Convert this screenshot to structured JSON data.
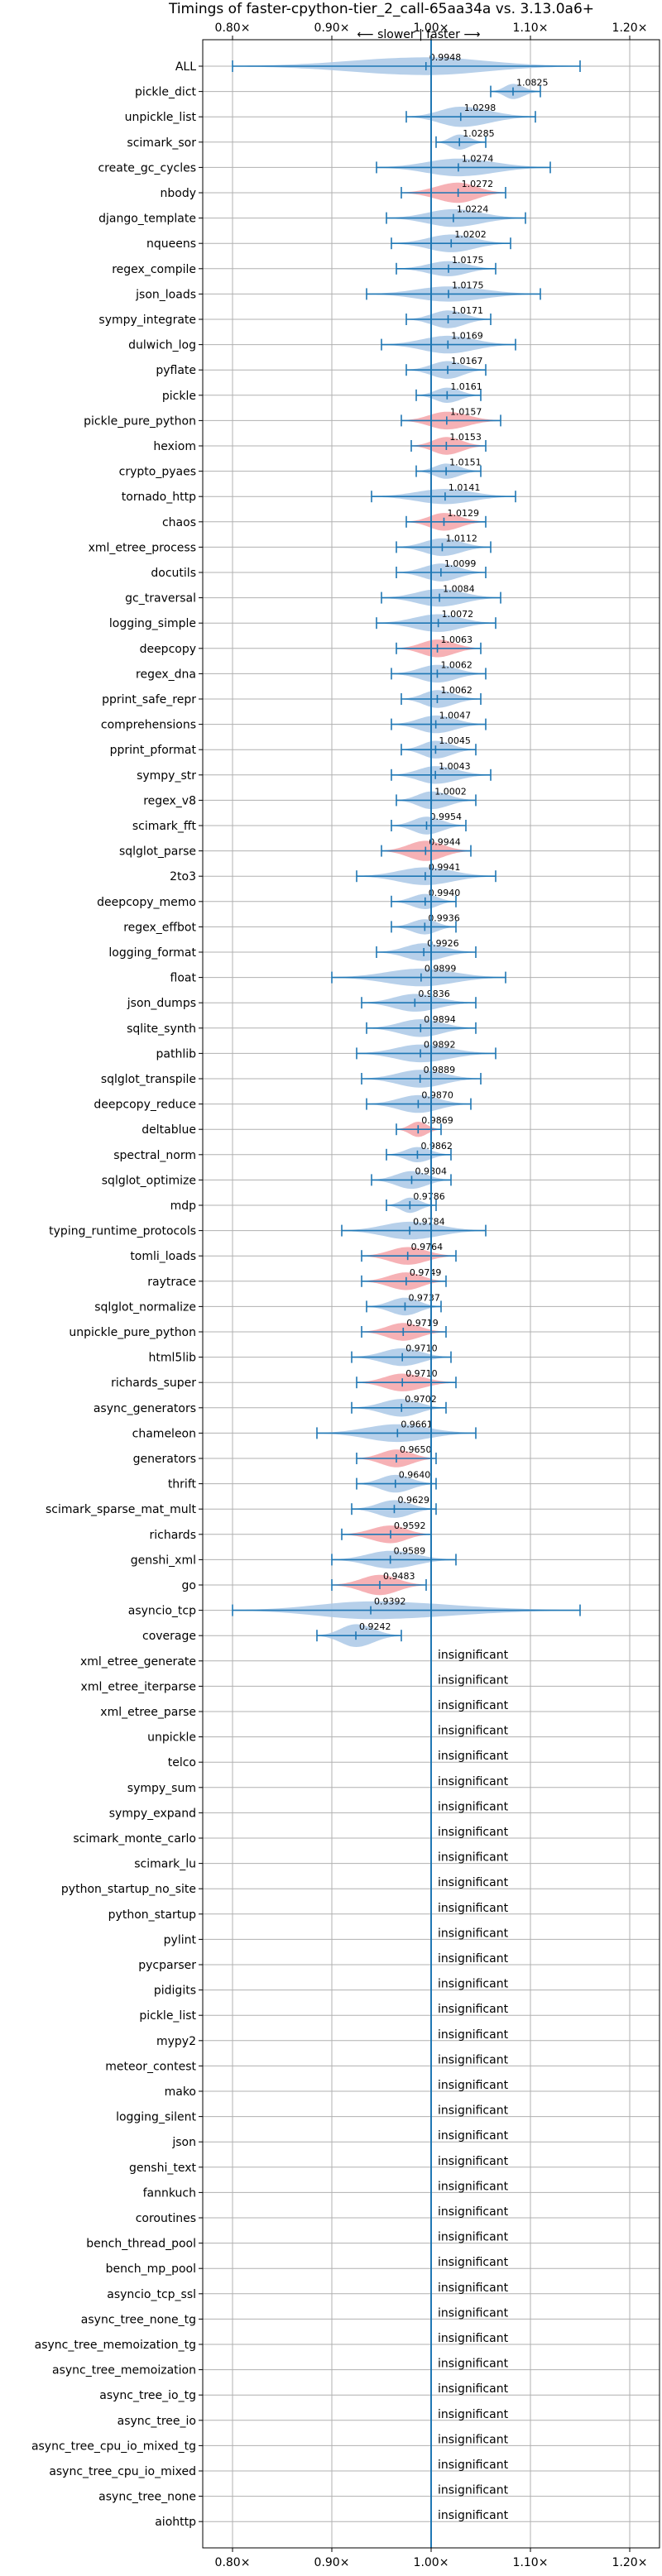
{
  "chart_data": {
    "type": "violin",
    "title": "Timings of faster-cpython-tier_2_call-65aa34a vs. 3.13.0a6+",
    "direction_label": "⟵ slower | faster ⟶",
    "xlim": [
      0.77,
      1.23
    ],
    "x_ticks": [
      {
        "value": 0.8,
        "label": "0.80×"
      },
      {
        "value": 0.9,
        "label": "0.90×"
      },
      {
        "value": 1.0,
        "label": "1.00×"
      },
      {
        "value": 1.1,
        "label": "1.10×"
      },
      {
        "value": 1.2,
        "label": "1.20×"
      }
    ],
    "reference_line": 1.0,
    "grid": true,
    "colors": {
      "faster": "#aac8e6",
      "slower": "#f4a3a8",
      "whisker": "#1f77b4",
      "grid": "#b0b0b0"
    },
    "insignificant_text": "insignificant",
    "benchmarks": [
      {
        "name": "ALL",
        "label": "0.9948",
        "mean": 0.9948,
        "min": 0.8,
        "max": 1.15,
        "width": 0.7,
        "slower": false
      },
      {
        "name": "pickle_dict",
        "label": "1.0825",
        "mean": 1.0825,
        "min": 1.06,
        "max": 1.11,
        "width": 0.6,
        "slower": false
      },
      {
        "name": "unpickle_list",
        "label": "1.0298",
        "mean": 1.0298,
        "min": 0.975,
        "max": 1.105,
        "width": 0.8,
        "slower": false
      },
      {
        "name": "scimark_sor",
        "label": "1.0285",
        "mean": 1.0285,
        "min": 1.005,
        "max": 1.055,
        "width": 0.6,
        "slower": false
      },
      {
        "name": "create_gc_cycles",
        "label": "1.0274",
        "mean": 1.0274,
        "min": 0.945,
        "max": 1.12,
        "width": 0.7,
        "slower": false
      },
      {
        "name": "nbody",
        "label": "1.0272",
        "mean": 1.0272,
        "min": 0.97,
        "max": 1.075,
        "width": 0.8,
        "slower": true
      },
      {
        "name": "django_template",
        "label": "1.0224",
        "mean": 1.0224,
        "min": 0.955,
        "max": 1.095,
        "width": 0.7,
        "slower": false
      },
      {
        "name": "nqueens",
        "label": "1.0202",
        "mean": 1.0202,
        "min": 0.96,
        "max": 1.08,
        "width": 0.7,
        "slower": false
      },
      {
        "name": "regex_compile",
        "label": "1.0175",
        "mean": 1.0175,
        "min": 0.965,
        "max": 1.065,
        "width": 0.6,
        "slower": false
      },
      {
        "name": "json_loads",
        "label": "1.0175",
        "mean": 1.0175,
        "min": 0.935,
        "max": 1.11,
        "width": 0.6,
        "slower": false
      },
      {
        "name": "sympy_integrate",
        "label": "1.0171",
        "mean": 1.0171,
        "min": 0.975,
        "max": 1.06,
        "width": 0.7,
        "slower": false
      },
      {
        "name": "dulwich_log",
        "label": "1.0169",
        "mean": 1.0169,
        "min": 0.95,
        "max": 1.085,
        "width": 0.7,
        "slower": false
      },
      {
        "name": "pyflate",
        "label": "1.0167",
        "mean": 1.0167,
        "min": 0.975,
        "max": 1.055,
        "width": 0.7,
        "slower": false
      },
      {
        "name": "pickle",
        "label": "1.0161",
        "mean": 1.0161,
        "min": 0.985,
        "max": 1.05,
        "width": 0.6,
        "slower": false
      },
      {
        "name": "pickle_pure_python",
        "label": "1.0157",
        "mean": 1.0157,
        "min": 0.97,
        "max": 1.07,
        "width": 0.7,
        "slower": true
      },
      {
        "name": "hexiom",
        "label": "1.0153",
        "mean": 1.0153,
        "min": 0.98,
        "max": 1.055,
        "width": 0.7,
        "slower": true
      },
      {
        "name": "crypto_pyaes",
        "label": "1.0151",
        "mean": 1.0151,
        "min": 0.985,
        "max": 1.05,
        "width": 0.6,
        "slower": false
      },
      {
        "name": "tornado_http",
        "label": "1.0141",
        "mean": 1.0141,
        "min": 0.94,
        "max": 1.085,
        "width": 0.6,
        "slower": false
      },
      {
        "name": "chaos",
        "label": "1.0129",
        "mean": 1.0129,
        "min": 0.975,
        "max": 1.055,
        "width": 0.7,
        "slower": true
      },
      {
        "name": "xml_etree_process",
        "label": "1.0112",
        "mean": 1.0112,
        "min": 0.965,
        "max": 1.06,
        "width": 0.7,
        "slower": false
      },
      {
        "name": "docutils",
        "label": "1.0099",
        "mean": 1.0099,
        "min": 0.965,
        "max": 1.055,
        "width": 0.7,
        "slower": false
      },
      {
        "name": "gc_traversal",
        "label": "1.0084",
        "mean": 1.0084,
        "min": 0.95,
        "max": 1.07,
        "width": 0.7,
        "slower": false
      },
      {
        "name": "logging_simple",
        "label": "1.0072",
        "mean": 1.0072,
        "min": 0.945,
        "max": 1.065,
        "width": 0.7,
        "slower": false
      },
      {
        "name": "deepcopy",
        "label": "1.0063",
        "mean": 1.0063,
        "min": 0.965,
        "max": 1.05,
        "width": 0.7,
        "slower": true
      },
      {
        "name": "regex_dna",
        "label": "1.0062",
        "mean": 1.0062,
        "min": 0.96,
        "max": 1.055,
        "width": 0.7,
        "slower": false
      },
      {
        "name": "pprint_safe_repr",
        "label": "1.0062",
        "mean": 1.0062,
        "min": 0.97,
        "max": 1.05,
        "width": 0.7,
        "slower": false
      },
      {
        "name": "comprehensions",
        "label": "1.0047",
        "mean": 1.0047,
        "min": 0.96,
        "max": 1.055,
        "width": 0.7,
        "slower": false
      },
      {
        "name": "pprint_pformat",
        "label": "1.0045",
        "mean": 1.0045,
        "min": 0.97,
        "max": 1.045,
        "width": 0.7,
        "slower": false
      },
      {
        "name": "sympy_str",
        "label": "1.0043",
        "mean": 1.0043,
        "min": 0.96,
        "max": 1.06,
        "width": 0.7,
        "slower": false
      },
      {
        "name": "regex_v8",
        "label": "1.0002",
        "mean": 1.0002,
        "min": 0.965,
        "max": 1.045,
        "width": 0.7,
        "slower": false
      },
      {
        "name": "scimark_fft",
        "label": "0.9954",
        "mean": 0.9954,
        "min": 0.96,
        "max": 1.035,
        "width": 0.7,
        "slower": false
      },
      {
        "name": "sqlglot_parse",
        "label": "0.9944",
        "mean": 0.9944,
        "min": 0.95,
        "max": 1.04,
        "width": 0.8,
        "slower": true
      },
      {
        "name": "2to3",
        "label": "0.9941",
        "mean": 0.9941,
        "min": 0.925,
        "max": 1.065,
        "width": 0.7,
        "slower": false
      },
      {
        "name": "deepcopy_memo",
        "label": "0.9940",
        "mean": 0.994,
        "min": 0.96,
        "max": 1.025,
        "width": 0.6,
        "slower": false
      },
      {
        "name": "regex_effbot",
        "label": "0.9936",
        "mean": 0.9936,
        "min": 0.96,
        "max": 1.025,
        "width": 0.6,
        "slower": false
      },
      {
        "name": "logging_format",
        "label": "0.9926",
        "mean": 0.9926,
        "min": 0.945,
        "max": 1.045,
        "width": 0.7,
        "slower": false
      },
      {
        "name": "float",
        "label": "0.9899",
        "mean": 0.9899,
        "min": 0.9,
        "max": 1.075,
        "width": 0.7,
        "slower": false
      },
      {
        "name": "json_dumps",
        "label": "0.9836",
        "mean": 0.9836,
        "min": 0.93,
        "max": 1.045,
        "width": 0.7,
        "slower": false
      },
      {
        "name": "sqlite_synth",
        "label": "0.9894",
        "mean": 0.9894,
        "min": 0.935,
        "max": 1.045,
        "width": 0.7,
        "slower": false
      },
      {
        "name": "pathlib",
        "label": "0.9892",
        "mean": 0.9892,
        "min": 0.925,
        "max": 1.065,
        "width": 0.7,
        "slower": false
      },
      {
        "name": "sqlglot_transpile",
        "label": "0.9889",
        "mean": 0.9889,
        "min": 0.93,
        "max": 1.05,
        "width": 0.7,
        "slower": false
      },
      {
        "name": "deepcopy_reduce",
        "label": "0.9870",
        "mean": 0.987,
        "min": 0.935,
        "max": 1.04,
        "width": 0.7,
        "slower": false
      },
      {
        "name": "deltablue",
        "label": "0.9869",
        "mean": 0.9869,
        "min": 0.965,
        "max": 1.01,
        "width": 0.6,
        "slower": true
      },
      {
        "name": "spectral_norm",
        "label": "0.9862",
        "mean": 0.9862,
        "min": 0.955,
        "max": 1.02,
        "width": 0.6,
        "slower": false
      },
      {
        "name": "sqlglot_optimize",
        "label": "0.9804",
        "mean": 0.9804,
        "min": 0.94,
        "max": 1.02,
        "width": 0.7,
        "slower": false
      },
      {
        "name": "mdp",
        "label": "0.9786",
        "mean": 0.9786,
        "min": 0.955,
        "max": 1.005,
        "width": 0.6,
        "slower": false
      },
      {
        "name": "typing_runtime_protocols",
        "label": "0.9784",
        "mean": 0.9784,
        "min": 0.91,
        "max": 1.055,
        "width": 0.7,
        "slower": false
      },
      {
        "name": "tomli_loads",
        "label": "0.9764",
        "mean": 0.9764,
        "min": 0.93,
        "max": 1.025,
        "width": 0.7,
        "slower": true
      },
      {
        "name": "raytrace",
        "label": "0.9749",
        "mean": 0.9749,
        "min": 0.93,
        "max": 1.015,
        "width": 0.7,
        "slower": true
      },
      {
        "name": "sqlglot_normalize",
        "label": "0.9737",
        "mean": 0.9737,
        "min": 0.935,
        "max": 1.01,
        "width": 0.7,
        "slower": false
      },
      {
        "name": "unpickle_pure_python",
        "label": "0.9719",
        "mean": 0.9719,
        "min": 0.93,
        "max": 1.015,
        "width": 0.7,
        "slower": true
      },
      {
        "name": "html5lib",
        "label": "0.9710",
        "mean": 0.971,
        "min": 0.92,
        "max": 1.02,
        "width": 0.7,
        "slower": false
      },
      {
        "name": "richards_super",
        "label": "0.9710",
        "mean": 0.971,
        "min": 0.925,
        "max": 1.025,
        "width": 0.7,
        "slower": true
      },
      {
        "name": "async_generators",
        "label": "0.9702",
        "mean": 0.9702,
        "min": 0.92,
        "max": 1.015,
        "width": 0.7,
        "slower": false
      },
      {
        "name": "chameleon",
        "label": "0.9661",
        "mean": 0.9661,
        "min": 0.885,
        "max": 1.045,
        "width": 0.7,
        "slower": false
      },
      {
        "name": "generators",
        "label": "0.9650",
        "mean": 0.965,
        "min": 0.925,
        "max": 1.005,
        "width": 0.7,
        "slower": true
      },
      {
        "name": "thrift",
        "label": "0.9640",
        "mean": 0.964,
        "min": 0.925,
        "max": 1.005,
        "width": 0.7,
        "slower": false
      },
      {
        "name": "scimark_sparse_mat_mult",
        "label": "0.9629",
        "mean": 0.9629,
        "min": 0.92,
        "max": 1.005,
        "width": 0.7,
        "slower": false
      },
      {
        "name": "richards",
        "label": "0.9592",
        "mean": 0.9592,
        "min": 0.91,
        "max": 1.0,
        "width": 0.7,
        "slower": true
      },
      {
        "name": "genshi_xml",
        "label": "0.9589",
        "mean": 0.9589,
        "min": 0.9,
        "max": 1.025,
        "width": 0.7,
        "slower": false
      },
      {
        "name": "go",
        "label": "0.9483",
        "mean": 0.9483,
        "min": 0.9,
        "max": 0.995,
        "width": 0.8,
        "slower": true
      },
      {
        "name": "asyncio_tcp",
        "label": "0.9392",
        "mean": 0.9392,
        "min": 0.8,
        "max": 1.15,
        "width": 0.7,
        "slower": false
      },
      {
        "name": "coverage",
        "label": "0.9242",
        "mean": 0.9242,
        "min": 0.885,
        "max": 0.97,
        "width": 0.9,
        "slower": false
      },
      {
        "name": "xml_etree_generate",
        "insignificant": true
      },
      {
        "name": "xml_etree_iterparse",
        "insignificant": true
      },
      {
        "name": "xml_etree_parse",
        "insignificant": true
      },
      {
        "name": "unpickle",
        "insignificant": true
      },
      {
        "name": "telco",
        "insignificant": true
      },
      {
        "name": "sympy_sum",
        "insignificant": true
      },
      {
        "name": "sympy_expand",
        "insignificant": true
      },
      {
        "name": "scimark_monte_carlo",
        "insignificant": true
      },
      {
        "name": "scimark_lu",
        "insignificant": true
      },
      {
        "name": "python_startup_no_site",
        "insignificant": true
      },
      {
        "name": "python_startup",
        "insignificant": true
      },
      {
        "name": "pylint",
        "insignificant": true
      },
      {
        "name": "pycparser",
        "insignificant": true
      },
      {
        "name": "pidigits",
        "insignificant": true
      },
      {
        "name": "pickle_list",
        "insignificant": true
      },
      {
        "name": "mypy2",
        "insignificant": true
      },
      {
        "name": "meteor_contest",
        "insignificant": true
      },
      {
        "name": "mako",
        "insignificant": true
      },
      {
        "name": "logging_silent",
        "insignificant": true
      },
      {
        "name": "json",
        "insignificant": true
      },
      {
        "name": "genshi_text",
        "insignificant": true
      },
      {
        "name": "fannkuch",
        "insignificant": true
      },
      {
        "name": "coroutines",
        "insignificant": true
      },
      {
        "name": "bench_thread_pool",
        "insignificant": true
      },
      {
        "name": "bench_mp_pool",
        "insignificant": true
      },
      {
        "name": "asyncio_tcp_ssl",
        "insignificant": true
      },
      {
        "name": "async_tree_none_tg",
        "insignificant": true
      },
      {
        "name": "async_tree_memoization_tg",
        "insignificant": true
      },
      {
        "name": "async_tree_memoization",
        "insignificant": true
      },
      {
        "name": "async_tree_io_tg",
        "insignificant": true
      },
      {
        "name": "async_tree_io",
        "insignificant": true
      },
      {
        "name": "async_tree_cpu_io_mixed_tg",
        "insignificant": true
      },
      {
        "name": "async_tree_cpu_io_mixed",
        "insignificant": true
      },
      {
        "name": "async_tree_none",
        "insignificant": true
      },
      {
        "name": "aiohttp",
        "insignificant": true
      }
    ]
  }
}
